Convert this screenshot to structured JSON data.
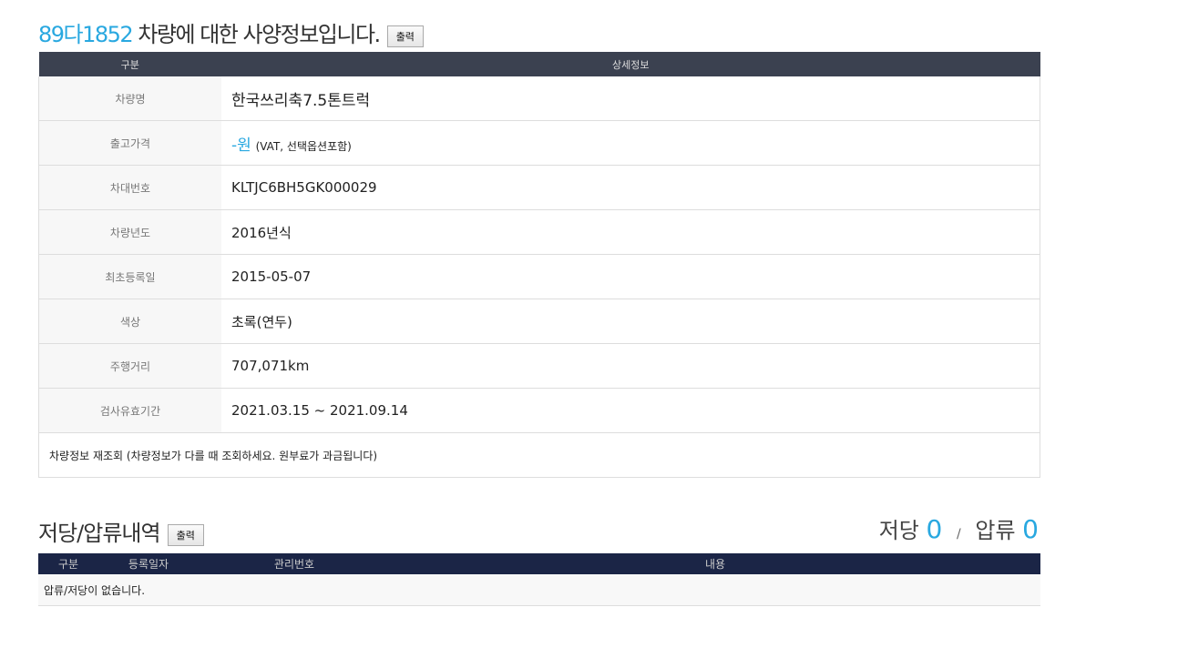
{
  "title": {
    "plate": "89다1852",
    "text": " 차량에 대한 사양정보입니다.",
    "print_label": "출력"
  },
  "spec": {
    "headers": [
      "구분",
      "상세정보"
    ],
    "rows": [
      {
        "label": "차량명",
        "value": "한국쓰리축7.5톤트럭"
      },
      {
        "label": "출고가격",
        "value": "-원",
        "note": "(VAT, 선택옵션포함)"
      },
      {
        "label": "차대번호",
        "value": "KLTJC6BH5GK000029"
      },
      {
        "label": "차량년도",
        "value": "2016년식"
      },
      {
        "label": "최초등록일",
        "value": "2015-05-07"
      },
      {
        "label": "색상",
        "value": "초록(연두)"
      },
      {
        "label": "주행거리",
        "value": "707,071km"
      },
      {
        "label": "검사유효기간",
        "value": "2021.03.15 ~ 2021.09.14"
      }
    ],
    "requery": "차량정보 재조회 (차량정보가 다를 때 조회하세요. 원부료가 과금됩니다)"
  },
  "lien": {
    "title": "저당/압류내역",
    "print_label": "출력",
    "mortgage_label": "저당",
    "mortgage_count": "0",
    "separator": "/",
    "seizure_label": "압류",
    "seizure_count": "0",
    "headers": [
      "구분",
      "등록일자",
      "관리번호",
      "내용"
    ],
    "empty": "압류/저당이 없습니다."
  },
  "colors": {
    "accent": "#29a8e0",
    "spec_header": "#3b4150",
    "lien_header": "#1b2546"
  }
}
